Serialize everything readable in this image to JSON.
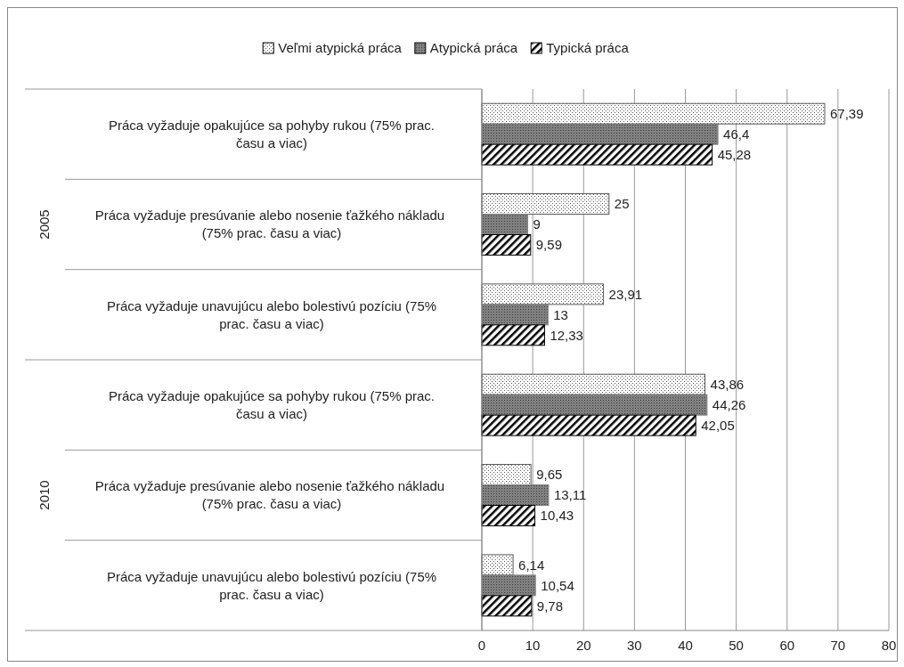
{
  "chart_data": {
    "type": "bar",
    "orientation": "horizontal",
    "categories": [
      "Práca vyžaduje opakujúce sa pohyby rukou  (75% prac. času a viac)",
      "Práca vyžaduje presúvanie alebo nosenie ťažkého nákladu  (75% prac. času a viac)",
      "Práca vyžaduje unavujúcu alebo bolestivú pozíciu (75% prac. času a viac)",
      "Práca vyžaduje opakujúce sa pohyby rukou  (75% prac. času a viac)",
      "Práca vyžaduje presúvanie alebo nosenie ťažkého nákladu  (75% prac. času a viac)",
      "Práca vyžaduje unavujúcu alebo bolestivú pozíciu (75% prac. času a viac)"
    ],
    "annotations": [
      "2005",
      "2010"
    ],
    "series": [
      {
        "name": "Veľmi atypická práca",
        "color": "#595959",
        "values": [
          67.39,
          25,
          23.91,
          43.86,
          9.65,
          6.14
        ],
        "value_labels": [
          "67,39",
          "25",
          "23,91",
          "43,86",
          "9,65",
          "6,14"
        ]
      },
      {
        "name": "Atypická práca",
        "color": "#808080",
        "values": [
          46.4,
          9,
          13,
          44.26,
          13.11,
          10.54
        ],
        "value_labels": [
          "46,4",
          "9",
          "13",
          "44,26",
          "13,11",
          "10,54"
        ]
      },
      {
        "name": "Typická práca",
        "color": "#000000",
        "values": [
          45.28,
          9.59,
          12.33,
          42.05,
          10.43,
          9.78
        ],
        "value_labels": [
          "45,28",
          "9,59",
          "12,33",
          "42,05",
          "10,43",
          "9,78"
        ]
      }
    ],
    "xlim": [
      0,
      80
    ],
    "xticks": [
      0,
      10,
      20,
      30,
      40,
      50,
      60,
      70,
      80
    ],
    "grid": "x",
    "legend": "top"
  }
}
